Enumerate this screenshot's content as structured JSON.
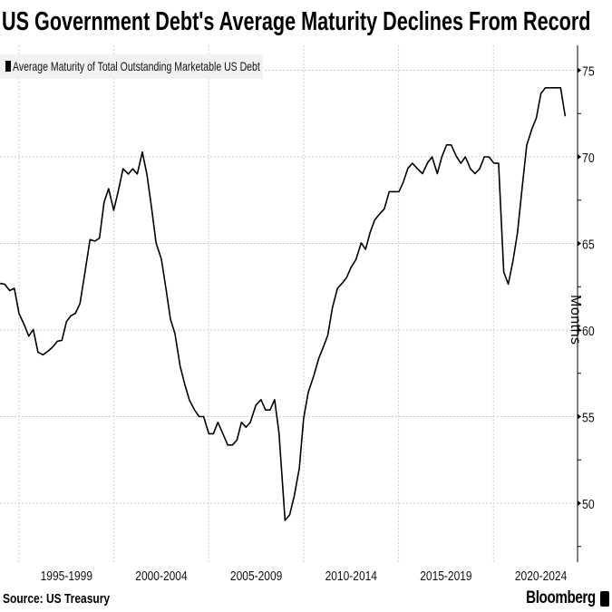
{
  "header": {
    "title": "US Government Debt's Average Maturity Declines From Record"
  },
  "footer": {
    "source": "Source: US Treasury",
    "brand": "Bloomberg"
  },
  "chart_data": {
    "type": "line",
    "title": "US Government Debt's Average Maturity Declines From Record",
    "xlabel": "",
    "ylabel": "Months",
    "ylim": [
      47,
      76.5
    ],
    "xlim": [
      1994,
      2024.5
    ],
    "yticks": [
      50,
      55,
      60,
      65,
      70,
      75
    ],
    "ytick_labels": [
      "50",
      "55",
      "60",
      "65",
      "70",
      "75"
    ],
    "xtick_labels": [
      "1995-1999",
      "2000-2004",
      "2005-2009",
      "2010-2014",
      "2015-2019",
      "2020-2024"
    ],
    "grid": true,
    "legend": {
      "placement": "top-left",
      "entries": [
        "Average Maturity of Total Outstanding Marketable US Debt"
      ]
    },
    "series": [
      {
        "name": "Average Maturity of Total Outstanding Marketable US Debt",
        "color": "#000000",
        "x": [
          1994.0,
          1994.24,
          1994.51,
          1994.75,
          1995.0,
          1995.27,
          1995.51,
          1995.75,
          1996.0,
          1996.26,
          1996.54,
          1996.78,
          1997.02,
          1997.26,
          1997.5,
          1997.73,
          1997.97,
          1998.21,
          1998.45,
          1998.74,
          1999.0,
          1999.24,
          1999.48,
          1999.72,
          1999.99,
          2000.23,
          2000.48,
          2000.76,
          2000.99,
          2001.23,
          2001.5,
          2001.74,
          2001.98,
          2002.22,
          2002.5,
          2002.74,
          2002.98,
          2003.22,
          2003.49,
          2003.73,
          2003.98,
          2004.25,
          2004.49,
          2004.73,
          2005.0,
          2005.24,
          2005.48,
          2005.76,
          2006.0,
          2006.24,
          2006.48,
          2006.72,
          2006.96,
          2007.19,
          2007.48,
          2007.75,
          2007.99,
          2008.23,
          2008.47,
          2008.7,
          2009.02,
          2009.26,
          2009.5,
          2009.77,
          2010.0,
          2010.24,
          2010.53,
          2010.8,
          2011.04,
          2011.27,
          2011.51,
          2011.78,
          2012.02,
          2012.26,
          2012.5,
          2012.75,
          2013.03,
          2013.26,
          2013.5,
          2013.74,
          2013.98,
          2014.25,
          2014.51,
          2014.75,
          2015.02,
          2015.25,
          2015.49,
          2015.73,
          2016.0,
          2016.26,
          2016.53,
          2016.77,
          2017.04,
          2017.28,
          2017.53,
          2017.77,
          2018.04,
          2018.28,
          2018.52,
          2018.79,
          2019.03,
          2019.27,
          2019.52,
          2019.76,
          2020.03,
          2020.27,
          2020.54,
          2020.78,
          2021.03,
          2021.27,
          2021.51,
          2021.75,
          2022.02,
          2022.26,
          2022.5,
          2022.74,
          2022.98,
          2023.3,
          2023.54,
          2023.78
        ],
        "values": [
          62.69,
          62.65,
          62.28,
          62.41,
          60.95,
          60.31,
          59.65,
          60.03,
          58.72,
          58.57,
          58.79,
          59.03,
          59.35,
          59.41,
          60.48,
          60.82,
          60.97,
          61.53,
          63.16,
          65.22,
          65.13,
          65.31,
          67.38,
          68.16,
          66.91,
          68.03,
          69.31,
          69.01,
          69.31,
          69.01,
          70.28,
          68.97,
          67.09,
          65.03,
          64.1,
          62.41,
          60.63,
          59.78,
          57.91,
          56.88,
          55.94,
          55.38,
          55.0,
          55.0,
          54.01,
          54.01,
          54.67,
          53.97,
          53.36,
          53.36,
          53.64,
          54.67,
          54.39,
          54.67,
          55.66,
          55.98,
          55.38,
          55.38,
          55.98,
          54.07,
          49.01,
          49.33,
          50.41,
          52.01,
          54.91,
          56.41,
          57.35,
          58.38,
          59.03,
          59.69,
          61.28,
          62.41,
          62.69,
          63.03,
          63.63,
          64.06,
          65.03,
          64.66,
          65.63,
          66.34,
          66.68,
          67.0,
          67.99,
          67.99,
          67.99,
          68.54,
          69.34,
          69.63,
          69.31,
          69.03,
          69.66,
          70.0,
          69.03,
          70.0,
          70.69,
          70.69,
          70.04,
          69.63,
          70.0,
          69.31,
          69.03,
          69.31,
          70.0,
          70.0,
          69.63,
          69.63,
          63.35,
          62.65,
          64.0,
          65.63,
          68.22,
          70.66,
          71.59,
          72.25,
          73.66,
          73.99,
          73.99,
          73.99,
          73.99,
          72.34
        ]
      }
    ]
  }
}
